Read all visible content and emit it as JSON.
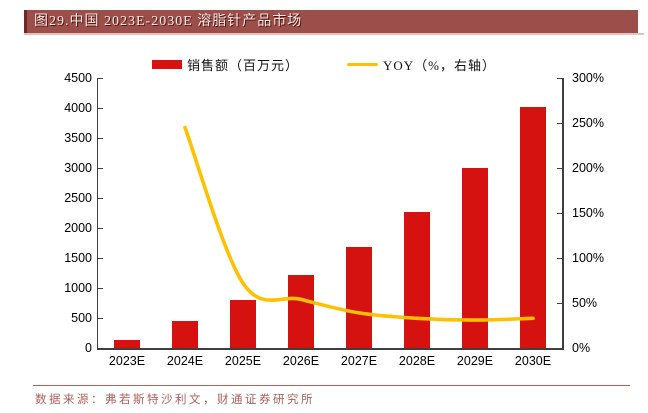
{
  "header": {
    "title": "图29.中国 2023E-2030E 溶脂针产品市场"
  },
  "legend": {
    "items": [
      {
        "label": "销售额（百万元）",
        "type": "bar",
        "color": "#d5120f"
      },
      {
        "label": "YOY（%，右轴）",
        "type": "line",
        "color": "#ffc000"
      }
    ]
  },
  "footer": {
    "source": "数据来源：弗若斯特沙利文，财通证券研究所"
  },
  "colors": {
    "bar": "#d5120f",
    "line": "#ffc000",
    "title_bg": "#9c4f4a",
    "title_border": "#6f2824",
    "title_text": "#f6ecea",
    "footer_text": "#ae5f5b",
    "axis": "#3f3f3f",
    "header_underline": "#e6c2bf"
  },
  "chart_data": {
    "type": "bar",
    "title": "中国 2023E-2030E 溶脂针产品市场",
    "categories": [
      "2023E",
      "2024E",
      "2025E",
      "2026E",
      "2027E",
      "2028E",
      "2029E",
      "2030E"
    ],
    "series": [
      {
        "name": "销售额（百万元）",
        "type": "bar",
        "axis": "left",
        "values": [
          130,
          455,
          805,
          1220,
          1690,
          2270,
          3000,
          4010
        ]
      },
      {
        "name": "YOY（%，右轴）",
        "type": "line",
        "axis": "right",
        "values": [
          null,
          245,
          72,
          54,
          39,
          33,
          31,
          33
        ]
      }
    ],
    "left_axis": {
      "min": 0,
      "max": 4500,
      "step": 500,
      "ticks": [
        "0",
        "500",
        "1000",
        "1500",
        "2000",
        "2500",
        "3000",
        "3500",
        "4000",
        "4500"
      ]
    },
    "right_axis": {
      "min": 0,
      "max": 300,
      "step": 50,
      "ticks": [
        "0%",
        "50%",
        "100%",
        "150%",
        "200%",
        "250%",
        "300%"
      ]
    },
    "legend_position": "top",
    "grid": false
  }
}
